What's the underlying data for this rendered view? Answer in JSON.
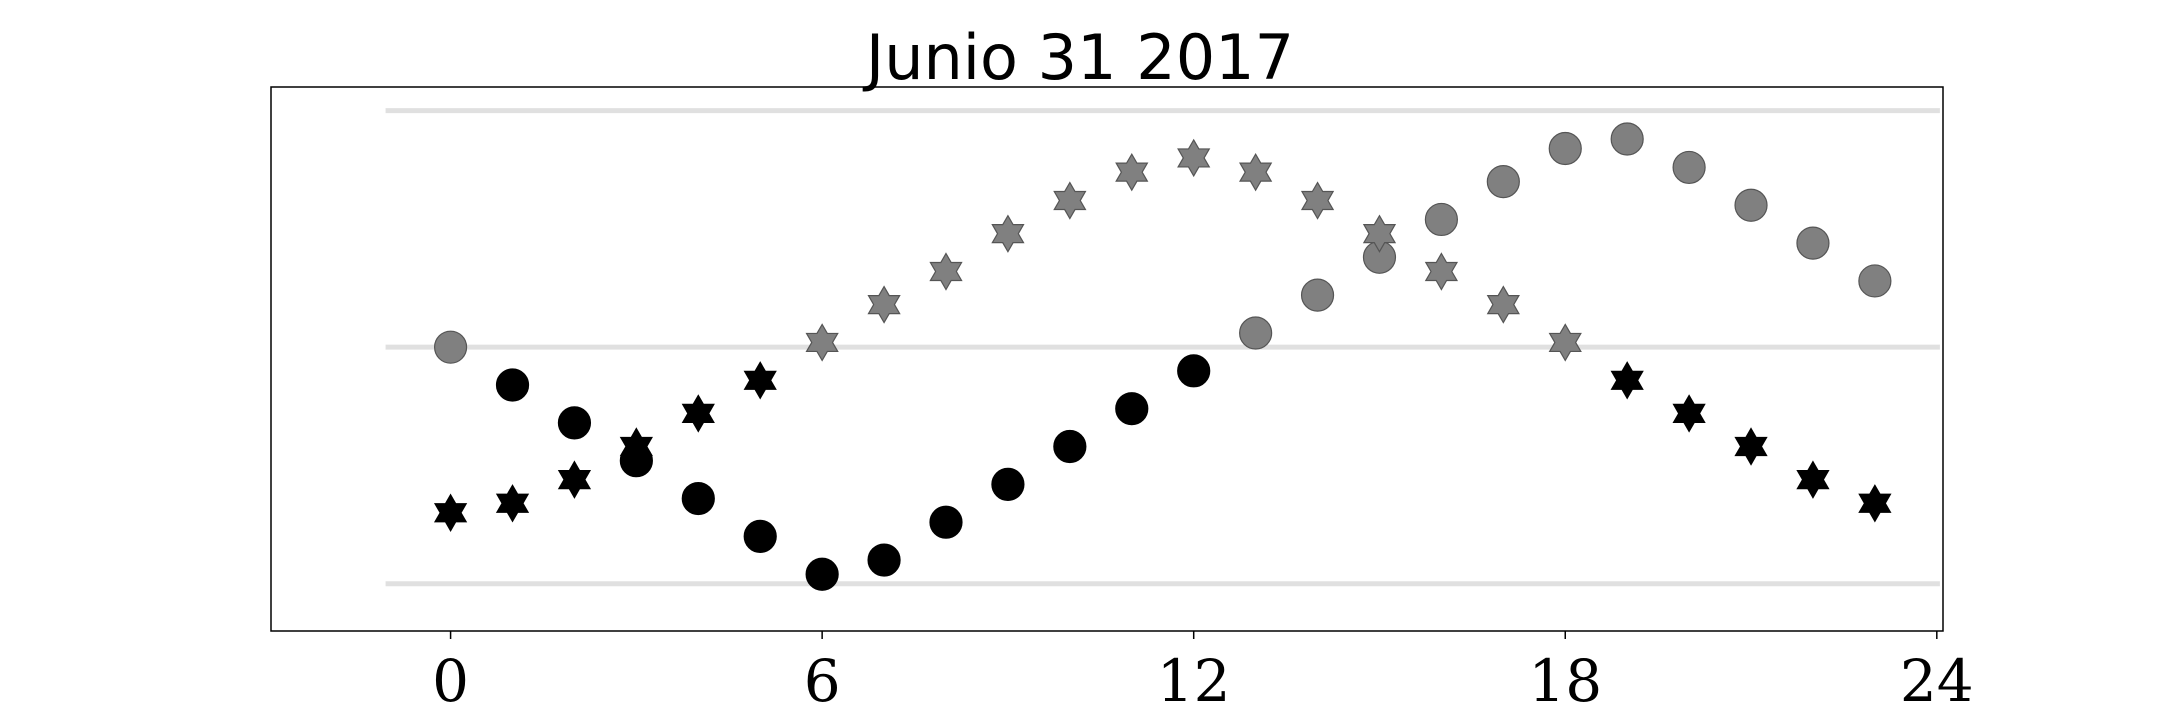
{
  "chart_data": {
    "type": "scatter",
    "title": "Junio 31 2017",
    "xlabel": "",
    "ylabel": "",
    "xlim": [
      -2.9,
      24.1
    ],
    "ylim": [
      -0.1,
      1.05
    ],
    "x_ticks": [
      0,
      6,
      12,
      18,
      24
    ],
    "x_tick_labels": [
      "0",
      "6",
      "12",
      "18",
      "24"
    ],
    "y_gridlines": [
      0,
      0.5,
      1.0
    ],
    "grid": "horizontal",
    "colors": {
      "dark": "#000000",
      "light": "#808080",
      "gridline": "#e0e0e0",
      "frame": "#000000"
    },
    "series": [
      {
        "marker": "circle",
        "x": [
          0,
          1,
          2,
          3,
          4,
          5,
          6,
          7,
          8,
          9,
          10,
          11,
          12,
          13,
          14,
          15,
          16,
          17,
          18,
          19,
          20,
          21,
          22,
          23
        ],
        "y": [
          0.5,
          0.42,
          0.34,
          0.26,
          0.18,
          0.1,
          0.02,
          0.05,
          0.13,
          0.21,
          0.29,
          0.37,
          0.45,
          0.53,
          0.61,
          0.69,
          0.77,
          0.85,
          0.92,
          0.94,
          0.88,
          0.8,
          0.72,
          0.64
        ],
        "color": [
          "light",
          "dark",
          "dark",
          "dark",
          "dark",
          "dark",
          "dark",
          "dark",
          "dark",
          "dark",
          "dark",
          "dark",
          "dark",
          "light",
          "light",
          "light",
          "light",
          "light",
          "light",
          "light",
          "light",
          "light",
          "light",
          "light"
        ]
      },
      {
        "marker": "star",
        "x": [
          0,
          1,
          2,
          3,
          4,
          5,
          6,
          7,
          8,
          9,
          10,
          11,
          12,
          13,
          14,
          15,
          16,
          17,
          18,
          19,
          20,
          21,
          22,
          23
        ],
        "y": [
          0.15,
          0.17,
          0.22,
          0.29,
          0.36,
          0.43,
          0.51,
          0.59,
          0.66,
          0.74,
          0.81,
          0.87,
          0.9,
          0.87,
          0.81,
          0.74,
          0.66,
          0.59,
          0.51,
          0.43,
          0.36,
          0.29,
          0.22,
          0.17
        ],
        "color": [
          "dark",
          "dark",
          "dark",
          "dark",
          "dark",
          "dark",
          "light",
          "light",
          "light",
          "light",
          "light",
          "light",
          "light",
          "light",
          "light",
          "light",
          "light",
          "light",
          "light",
          "dark",
          "dark",
          "dark",
          "dark",
          "dark"
        ]
      }
    ]
  }
}
